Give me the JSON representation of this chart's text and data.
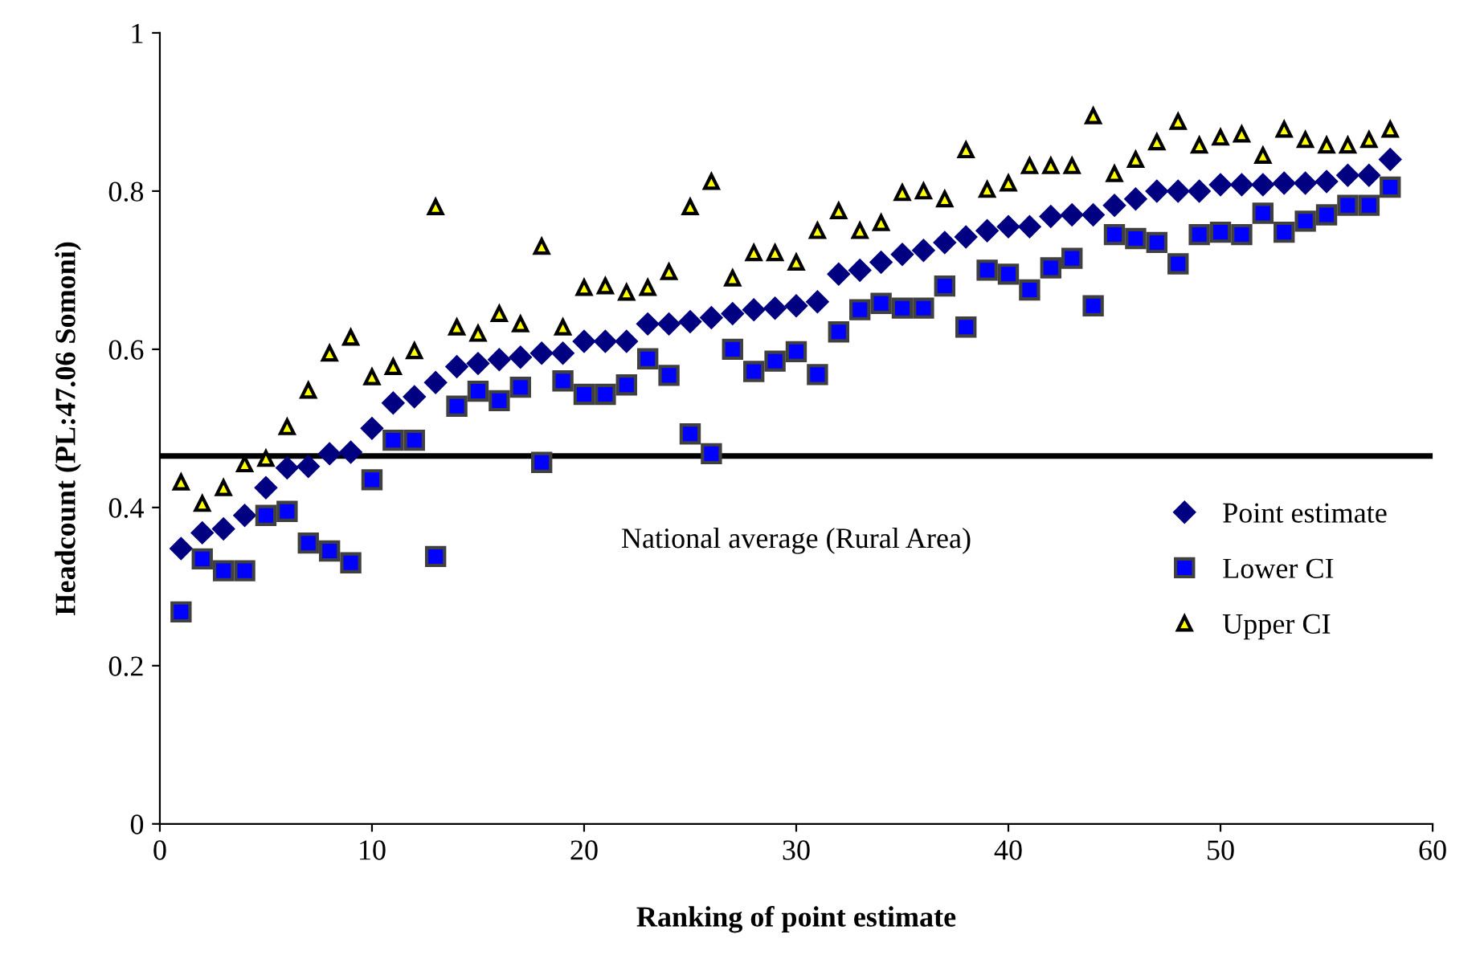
{
  "chart_data": {
    "type": "scatter",
    "xlabel": "Ranking of point estimate",
    "ylabel": "Headcount (PL:47.06 Somoni)",
    "x": [
      1,
      2,
      3,
      4,
      5,
      6,
      7,
      8,
      9,
      10,
      11,
      12,
      13,
      14,
      15,
      16,
      17,
      18,
      19,
      20,
      21,
      22,
      23,
      24,
      25,
      26,
      27,
      28,
      29,
      30,
      31,
      32,
      33,
      34,
      35,
      36,
      37,
      38,
      39,
      40,
      41,
      42,
      43,
      44,
      45,
      46,
      47,
      48,
      49,
      50,
      51,
      52,
      53,
      54,
      55,
      56,
      57,
      58
    ],
    "series": [
      {
        "name": "Point estimate",
        "color": "#000080",
        "marker": "diamond",
        "values": [
          0.348,
          0.368,
          0.373,
          0.39,
          0.425,
          0.45,
          0.452,
          0.468,
          0.47,
          0.5,
          0.532,
          0.54,
          0.558,
          0.578,
          0.582,
          0.587,
          0.59,
          0.595,
          0.595,
          0.61,
          0.61,
          0.61,
          0.632,
          0.632,
          0.635,
          0.64,
          0.645,
          0.65,
          0.652,
          0.655,
          0.66,
          0.695,
          0.7,
          0.71,
          0.72,
          0.725,
          0.735,
          0.742,
          0.75,
          0.755,
          0.755,
          0.768,
          0.77,
          0.77,
          0.782,
          0.79,
          0.8,
          0.8,
          0.8,
          0.808,
          0.808,
          0.808,
          0.81,
          0.81,
          0.812,
          0.82,
          0.82,
          0.84
        ]
      },
      {
        "name": "Lower CI",
        "color": "#0000ff",
        "marker": "square",
        "values": [
          0.268,
          0.335,
          0.32,
          0.32,
          0.39,
          0.395,
          0.355,
          0.345,
          0.33,
          0.435,
          0.485,
          0.485,
          0.338,
          0.528,
          0.547,
          0.535,
          0.552,
          0.457,
          0.56,
          0.543,
          0.543,
          0.555,
          0.588,
          0.567,
          0.493,
          0.468,
          0.6,
          0.572,
          0.585,
          0.597,
          0.568,
          0.622,
          0.65,
          0.658,
          0.652,
          0.652,
          0.68,
          0.628,
          0.7,
          0.695,
          0.675,
          0.703,
          0.715,
          0.655,
          0.745,
          0.74,
          0.735,
          0.708,
          0.745,
          0.748,
          0.745,
          0.772,
          0.748,
          0.762,
          0.77,
          0.782,
          0.782,
          0.805
        ]
      },
      {
        "name": "Upper CI",
        "color": "#ffff00",
        "marker": "triangle",
        "values": [
          0.432,
          0.405,
          0.425,
          0.455,
          0.462,
          0.502,
          0.548,
          0.595,
          0.615,
          0.565,
          0.578,
          0.598,
          0.78,
          0.628,
          0.62,
          0.645,
          0.632,
          0.73,
          0.628,
          0.678,
          0.68,
          0.672,
          0.678,
          0.698,
          0.78,
          0.812,
          0.69,
          0.722,
          0.722,
          0.71,
          0.75,
          0.775,
          0.75,
          0.76,
          0.798,
          0.8,
          0.79,
          0.852,
          0.802,
          0.81,
          0.832,
          0.832,
          0.832,
          0.895,
          0.822,
          0.84,
          0.862,
          0.888,
          0.858,
          0.868,
          0.872,
          0.845,
          0.878,
          0.865,
          0.858,
          0.858,
          0.865,
          0.878
        ]
      }
    ],
    "ref_lines": [
      {
        "axis": "y",
        "value": 0.465,
        "label": "National average (Rural Area)",
        "color": "#000000"
      }
    ],
    "xlim": [
      0,
      60
    ],
    "xticks": [
      0,
      10,
      20,
      30,
      40,
      50,
      60
    ],
    "ylim": [
      0,
      1
    ],
    "yticks": [
      0,
      0.2,
      0.4,
      0.6,
      0.8,
      1
    ],
    "grid": false,
    "legend": "bottom right"
  }
}
